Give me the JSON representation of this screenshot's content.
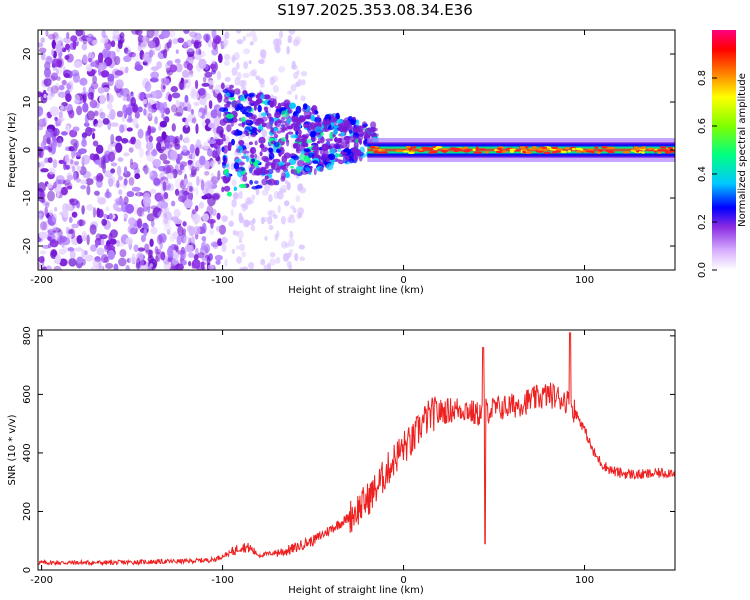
{
  "title": "S197.2025.353.08.34.E36",
  "chart_data": [
    {
      "type": "heatmap",
      "title": "S197.2025.353.08.34.E36",
      "xlabel": "Height of straight line (km)",
      "ylabel": "Frequency (Hz)",
      "xlim": [
        -202,
        150
      ],
      "ylim": [
        -25,
        25
      ],
      "xticks": [
        -200,
        -100,
        0,
        100
      ],
      "yticks": [
        -20,
        -10,
        0,
        10,
        20
      ],
      "colorbar": {
        "label": "Normalized spectral amplitude",
        "range": [
          0.0,
          1.0
        ],
        "ticks": [
          "0.0",
          "0.2",
          "0.4",
          "0.6",
          "0.8"
        ],
        "colors": [
          "#ffffff",
          "#d8b0ff",
          "#8a2be2",
          "#0000ff",
          "#00c8ff",
          "#00ff80",
          "#80ff00",
          "#ffff00",
          "#ff8000",
          "#ff0000",
          "#ff0080"
        ]
      },
      "description_regions": [
        {
          "x_range": [
            -202,
            -100
          ],
          "freq_range": [
            -25,
            25
          ],
          "amplitude": 0.1
        },
        {
          "x_range": [
            -100,
            -20
          ],
          "freq_range": [
            -10,
            12
          ],
          "amplitude": 0.2
        },
        {
          "x_range": [
            -20,
            150
          ],
          "freq_range": [
            -2,
            2
          ],
          "amplitude": 0.85
        }
      ]
    },
    {
      "type": "line",
      "xlabel": "Height of straight line (km)",
      "ylabel": "SNR (10 * v/v)",
      "xlim": [
        -202,
        150
      ],
      "ylim": [
        0,
        820
      ],
      "xticks": [
        -200,
        -100,
        0,
        100
      ],
      "yticks": [
        0,
        200,
        400,
        600,
        800
      ],
      "series": [
        {
          "name": "SNR",
          "color": "#ee2020",
          "x": [
            -202,
            -180,
            -160,
            -140,
            -120,
            -105,
            -95,
            -90,
            -85,
            -80,
            -75,
            -70,
            -65,
            -60,
            -55,
            -50,
            -45,
            -40,
            -35,
            -30,
            -25,
            -20,
            -15,
            -10,
            -5,
            0,
            5,
            10,
            15,
            20,
            25,
            30,
            35,
            40,
            45,
            50,
            55,
            60,
            65,
            70,
            75,
            80,
            85,
            90,
            95,
            100,
            105,
            110,
            115,
            120,
            130,
            140,
            150
          ],
          "values": [
            25,
            25,
            25,
            28,
            30,
            35,
            60,
            80,
            75,
            50,
            55,
            60,
            65,
            75,
            90,
            100,
            120,
            140,
            160,
            180,
            210,
            240,
            280,
            330,
            380,
            420,
            440,
            500,
            530,
            540,
            545,
            550,
            550,
            530,
            545,
            550,
            555,
            560,
            570,
            580,
            590,
            600,
            590,
            580,
            540,
            480,
            400,
            360,
            340,
            330,
            325,
            330,
            335
          ]
        }
      ],
      "annotations": [
        {
          "x": 44,
          "value": 760,
          "label": "spike"
        },
        {
          "x": 45,
          "value": 90,
          "label": "dip"
        },
        {
          "x": 92,
          "value": 810,
          "label": "peak"
        }
      ]
    }
  ]
}
